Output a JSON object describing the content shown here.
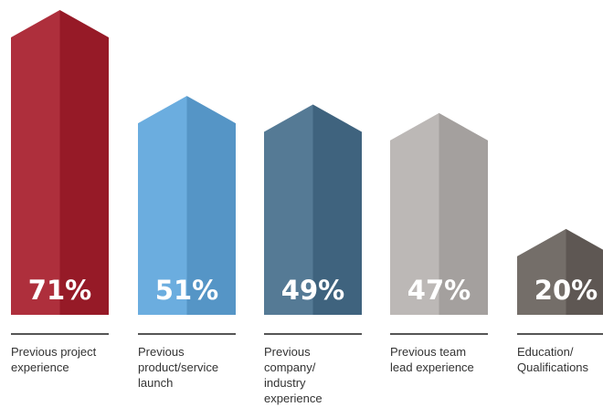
{
  "chart_data": {
    "type": "bar",
    "categories": [
      [
        "Previous project",
        "experience"
      ],
      [
        "Previous",
        "product/service",
        "launch"
      ],
      [
        "Previous",
        "company/",
        "industry",
        "experience"
      ],
      [
        "Previous team",
        "lead experience"
      ],
      [
        "Education/",
        "Qualifications"
      ]
    ],
    "values": [
      71,
      51,
      49,
      47,
      20
    ],
    "value_labels": [
      "71%",
      "51%",
      "49%",
      "47%",
      "20%"
    ],
    "colors": [
      "#a71d2b",
      "#5ea6dc",
      "#466e8c",
      "#b6b2b0",
      "#68615c"
    ],
    "ylim": [
      0,
      71
    ],
    "grid": false,
    "legend": "none"
  }
}
